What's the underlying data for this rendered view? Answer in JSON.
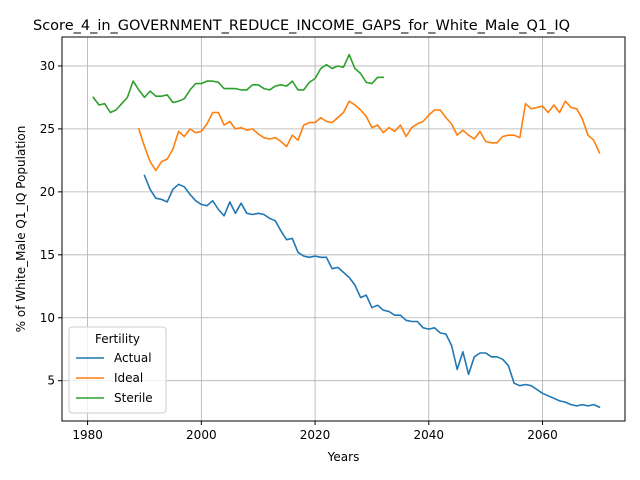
{
  "chart_data": {
    "type": "line",
    "title": "Score_4_in_GOVERNMENT_REDUCE_INCOME_GAPS_for_White_Male_Q1_IQ",
    "xlabel": "Years",
    "ylabel": "% of White_Male Q1_IQ Population",
    "xlim": [
      1975.5,
      2074.5
    ],
    "ylim": [
      1.8,
      32.3
    ],
    "xticks": [
      1980,
      2000,
      2020,
      2040,
      2060
    ],
    "yticks": [
      5,
      10,
      15,
      20,
      25,
      30
    ],
    "grid": true,
    "legend": {
      "title": "Fertility",
      "position": "lower-left"
    },
    "series": [
      {
        "name": "Actual",
        "color": "#1f77b4",
        "x": [
          1990,
          1991,
          1992,
          1993,
          1994,
          1995,
          1996,
          1997,
          1998,
          1999,
          2000,
          2001,
          2002,
          2003,
          2004,
          2005,
          2006,
          2007,
          2008,
          2009,
          2010,
          2011,
          2012,
          2013,
          2014,
          2015,
          2016,
          2017,
          2018,
          2019,
          2020,
          2021,
          2022,
          2023,
          2024,
          2025,
          2026,
          2027,
          2028,
          2029,
          2030,
          2031,
          2032,
          2033,
          2034,
          2035,
          2036,
          2037,
          2038,
          2039,
          2040,
          2041,
          2042,
          2043,
          2044,
          2045,
          2046,
          2047,
          2048,
          2049,
          2050,
          2051,
          2052,
          2053,
          2054,
          2055,
          2056,
          2057,
          2058,
          2059,
          2060,
          2061,
          2062,
          2063,
          2064,
          2065,
          2066,
          2067,
          2068,
          2069,
          2070
        ],
        "values": [
          21.3,
          20.2,
          19.5,
          19.4,
          19.2,
          20.2,
          20.6,
          20.4,
          19.8,
          19.3,
          19.0,
          18.9,
          19.3,
          18.6,
          18.1,
          19.2,
          18.3,
          19.1,
          18.3,
          18.2,
          18.3,
          18.2,
          17.9,
          17.7,
          16.9,
          16.2,
          16.3,
          15.2,
          14.9,
          14.8,
          14.9,
          14.8,
          14.8,
          13.9,
          14.0,
          13.6,
          13.2,
          12.6,
          11.6,
          11.8,
          10.8,
          11.0,
          10.6,
          10.5,
          10.2,
          10.2,
          9.8,
          9.7,
          9.7,
          9.2,
          9.1,
          9.2,
          8.8,
          8.7,
          7.8,
          5.9,
          7.3,
          5.5,
          6.9,
          7.2,
          7.2,
          6.9,
          6.9,
          6.7,
          6.2,
          4.8,
          4.6,
          4.7,
          4.6,
          4.3,
          4.0,
          3.8,
          3.6,
          3.4,
          3.3,
          3.1,
          3.0,
          3.1,
          3.0,
          3.1,
          2.9
        ]
      },
      {
        "name": "Ideal",
        "color": "#ff7f0e",
        "x": [
          1989,
          1990,
          1991,
          1992,
          1993,
          1994,
          1995,
          1996,
          1997,
          1998,
          1999,
          2000,
          2001,
          2002,
          2003,
          2004,
          2005,
          2006,
          2007,
          2008,
          2009,
          2010,
          2011,
          2012,
          2013,
          2014,
          2015,
          2016,
          2017,
          2018,
          2019,
          2020,
          2021,
          2022,
          2023,
          2024,
          2025,
          2026,
          2027,
          2028,
          2029,
          2030,
          2031,
          2032,
          2033,
          2034,
          2035,
          2036,
          2037,
          2038,
          2039,
          2040,
          2041,
          2042,
          2043,
          2044,
          2045,
          2046,
          2047,
          2048,
          2049,
          2050,
          2051,
          2052,
          2053,
          2054,
          2055,
          2056,
          2057,
          2058,
          2059,
          2060,
          2061,
          2062,
          2063,
          2064,
          2065,
          2066,
          2067,
          2068,
          2069,
          2070
        ],
        "values": [
          25.0,
          23.6,
          22.4,
          21.7,
          22.4,
          22.6,
          23.4,
          24.8,
          24.4,
          25.0,
          24.7,
          24.8,
          25.4,
          26.3,
          26.3,
          25.3,
          25.6,
          25.0,
          25.1,
          24.9,
          25.0,
          24.6,
          24.3,
          24.2,
          24.3,
          24.0,
          23.6,
          24.5,
          24.1,
          25.3,
          25.5,
          25.5,
          25.9,
          25.6,
          25.5,
          25.9,
          26.3,
          27.2,
          26.9,
          26.5,
          26.0,
          25.1,
          25.3,
          24.7,
          25.1,
          24.8,
          25.3,
          24.4,
          25.1,
          25.4,
          25.6,
          26.1,
          26.5,
          26.5,
          25.9,
          25.4,
          24.5,
          24.9,
          24.5,
          24.2,
          24.8,
          24.0,
          23.9,
          23.9,
          24.4,
          24.5,
          24.5,
          24.3,
          27.0,
          26.6,
          26.7,
          26.8,
          26.3,
          26.9,
          26.3,
          27.2,
          26.7,
          26.6,
          25.8,
          24.5,
          24.1,
          23.1
        ]
      },
      {
        "name": "Sterile",
        "color": "#2ca02c",
        "x": [
          1981,
          1982,
          1983,
          1984,
          1985,
          1986,
          1987,
          1988,
          1989,
          1990,
          1991,
          1992,
          1993,
          1994,
          1995,
          1996,
          1997,
          1998,
          1999,
          2000,
          2001,
          2002,
          2003,
          2004,
          2005,
          2006,
          2007,
          2008,
          2009,
          2010,
          2011,
          2012,
          2013,
          2014,
          2015,
          2016,
          2017,
          2018,
          2019,
          2020,
          2021,
          2022,
          2023,
          2024,
          2025,
          2026,
          2027,
          2028,
          2029,
          2030,
          2031,
          2032
        ],
        "values": [
          27.5,
          26.9,
          27.0,
          26.3,
          26.5,
          27.0,
          27.5,
          28.8,
          28.1,
          27.5,
          28.0,
          27.6,
          27.6,
          27.7,
          27.1,
          27.2,
          27.4,
          28.1,
          28.6,
          28.6,
          28.8,
          28.8,
          28.7,
          28.2,
          28.2,
          28.2,
          28.1,
          28.1,
          28.5,
          28.5,
          28.2,
          28.1,
          28.4,
          28.5,
          28.4,
          28.8,
          28.1,
          28.1,
          28.7,
          29.0,
          29.8,
          30.1,
          29.8,
          30.0,
          29.9,
          30.9,
          29.8,
          29.4,
          28.7,
          28.6,
          29.1,
          29.1
        ]
      }
    ]
  }
}
